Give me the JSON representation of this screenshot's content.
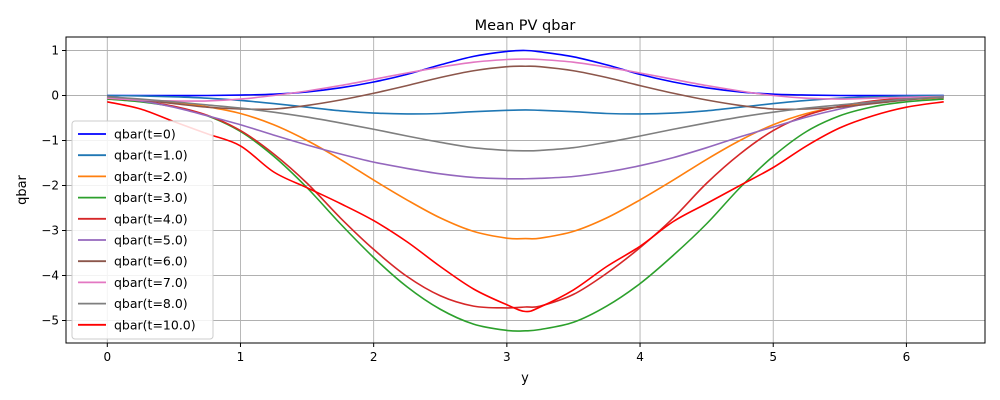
{
  "chart_data": {
    "type": "line",
    "title": "Mean PV qbar",
    "xlabel": "y",
    "ylabel": "qbar",
    "xlim": [
      -0.31,
      6.59
    ],
    "ylim": [
      -5.5,
      1.3
    ],
    "xticks": [
      0,
      1,
      2,
      3,
      4,
      5,
      6
    ],
    "yticks": [
      -5,
      -4,
      -3,
      -2,
      -1,
      0,
      1
    ],
    "xtick_labels": [
      "0",
      "1",
      "2",
      "3",
      "4",
      "5",
      "6"
    ],
    "ytick_labels": [
      "−5",
      "−4",
      "−3",
      "−2",
      "−1",
      "0",
      "1"
    ],
    "grid": true,
    "legend_position": "lower-left",
    "x": [
      0,
      0.25,
      0.5,
      0.75,
      1.0,
      1.25,
      1.5,
      1.75,
      2.0,
      2.25,
      2.5,
      2.75,
      3.0,
      3.14,
      3.25,
      3.5,
      3.75,
      4.0,
      4.25,
      4.5,
      4.75,
      5.0,
      5.25,
      5.5,
      5.75,
      6.0,
      6.28
    ],
    "series": [
      {
        "name": "qbar(t=0)",
        "color": "#0000ff",
        "values": [
          0,
          0,
          0,
          0,
          0.01,
          0.03,
          0.08,
          0.17,
          0.3,
          0.47,
          0.68,
          0.87,
          0.98,
          1.0,
          0.97,
          0.86,
          0.68,
          0.47,
          0.3,
          0.17,
          0.08,
          0.03,
          0.01,
          0,
          0,
          0,
          0
        ]
      },
      {
        "name": "qbar(t=1.0)",
        "color": "#1f77b4",
        "values": [
          0,
          -0.01,
          -0.03,
          -0.06,
          -0.11,
          -0.18,
          -0.26,
          -0.34,
          -0.39,
          -0.41,
          -0.4,
          -0.36,
          -0.33,
          -0.32,
          -0.33,
          -0.36,
          -0.4,
          -0.41,
          -0.39,
          -0.34,
          -0.26,
          -0.18,
          -0.11,
          -0.06,
          -0.03,
          -0.01,
          0
        ]
      },
      {
        "name": "qbar(t=2.0)",
        "color": "#ff7f0e",
        "values": [
          -0.05,
          -0.09,
          -0.15,
          -0.25,
          -0.4,
          -0.65,
          -1.0,
          -1.42,
          -1.88,
          -2.32,
          -2.72,
          -3.02,
          -3.17,
          -3.18,
          -3.17,
          -3.02,
          -2.72,
          -2.32,
          -1.88,
          -1.42,
          -1.0,
          -0.65,
          -0.4,
          -0.25,
          -0.15,
          -0.09,
          -0.05
        ]
      },
      {
        "name": "qbar(t=3.0)",
        "color": "#2ca02c",
        "values": [
          -0.08,
          -0.14,
          -0.25,
          -0.45,
          -0.8,
          -1.35,
          -2.05,
          -2.85,
          -3.6,
          -4.25,
          -4.75,
          -5.08,
          -5.22,
          -5.23,
          -5.2,
          -5.04,
          -4.68,
          -4.18,
          -3.55,
          -2.85,
          -2.05,
          -1.35,
          -0.8,
          -0.45,
          -0.25,
          -0.14,
          -0.08
        ]
      },
      {
        "name": "qbar(t=4.0)",
        "color": "#d62728",
        "values": [
          -0.06,
          -0.12,
          -0.24,
          -0.44,
          -0.78,
          -1.3,
          -1.95,
          -2.72,
          -3.42,
          -4.02,
          -4.45,
          -4.68,
          -4.72,
          -4.7,
          -4.68,
          -4.42,
          -3.95,
          -3.38,
          -2.72,
          -1.95,
          -1.3,
          -0.78,
          -0.44,
          -0.24,
          -0.12,
          -0.06,
          -0.04
        ]
      },
      {
        "name": "qbar(t=5.0)",
        "color": "#9467bd",
        "values": [
          -0.05,
          -0.12,
          -0.26,
          -0.45,
          -0.65,
          -0.88,
          -1.1,
          -1.3,
          -1.48,
          -1.62,
          -1.74,
          -1.82,
          -1.85,
          -1.85,
          -1.84,
          -1.8,
          -1.7,
          -1.56,
          -1.38,
          -1.16,
          -0.92,
          -0.7,
          -0.48,
          -0.3,
          -0.16,
          -0.08,
          -0.04
        ]
      },
      {
        "name": "qbar(t=6.0)",
        "color": "#8c564b",
        "values": [
          -0.02,
          -0.1,
          -0.18,
          -0.26,
          -0.3,
          -0.3,
          -0.22,
          -0.1,
          0.05,
          0.22,
          0.4,
          0.55,
          0.64,
          0.65,
          0.64,
          0.55,
          0.4,
          0.22,
          0.05,
          -0.1,
          -0.22,
          -0.3,
          -0.3,
          -0.26,
          -0.18,
          -0.1,
          -0.02
        ]
      },
      {
        "name": "qbar(t=7.0)",
        "color": "#e377c2",
        "values": [
          -0.06,
          -0.1,
          -0.12,
          -0.12,
          -0.08,
          0,
          0.1,
          0.22,
          0.36,
          0.5,
          0.63,
          0.74,
          0.8,
          0.81,
          0.8,
          0.74,
          0.63,
          0.5,
          0.36,
          0.22,
          0.1,
          0,
          -0.06,
          -0.08,
          -0.06,
          -0.04,
          -0.02
        ]
      },
      {
        "name": "qbar(t=8.0)",
        "color": "#7f7f7f",
        "values": [
          -0.03,
          -0.08,
          -0.14,
          -0.21,
          -0.28,
          -0.37,
          -0.48,
          -0.61,
          -0.75,
          -0.9,
          -1.04,
          -1.16,
          -1.22,
          -1.23,
          -1.22,
          -1.16,
          -1.04,
          -0.9,
          -0.75,
          -0.61,
          -0.48,
          -0.37,
          -0.28,
          -0.21,
          -0.14,
          -0.08,
          -0.03
        ]
      },
      {
        "name": "qbar(t=10.0)",
        "color": "#ff0000",
        "values": [
          -0.14,
          -0.3,
          -0.58,
          -0.85,
          -1.12,
          -1.7,
          -2.05,
          -2.4,
          -2.78,
          -3.25,
          -3.8,
          -4.3,
          -4.65,
          -4.8,
          -4.7,
          -4.32,
          -3.8,
          -3.35,
          -2.8,
          -2.4,
          -2.0,
          -1.6,
          -1.12,
          -0.72,
          -0.45,
          -0.26,
          -0.14
        ]
      }
    ]
  }
}
